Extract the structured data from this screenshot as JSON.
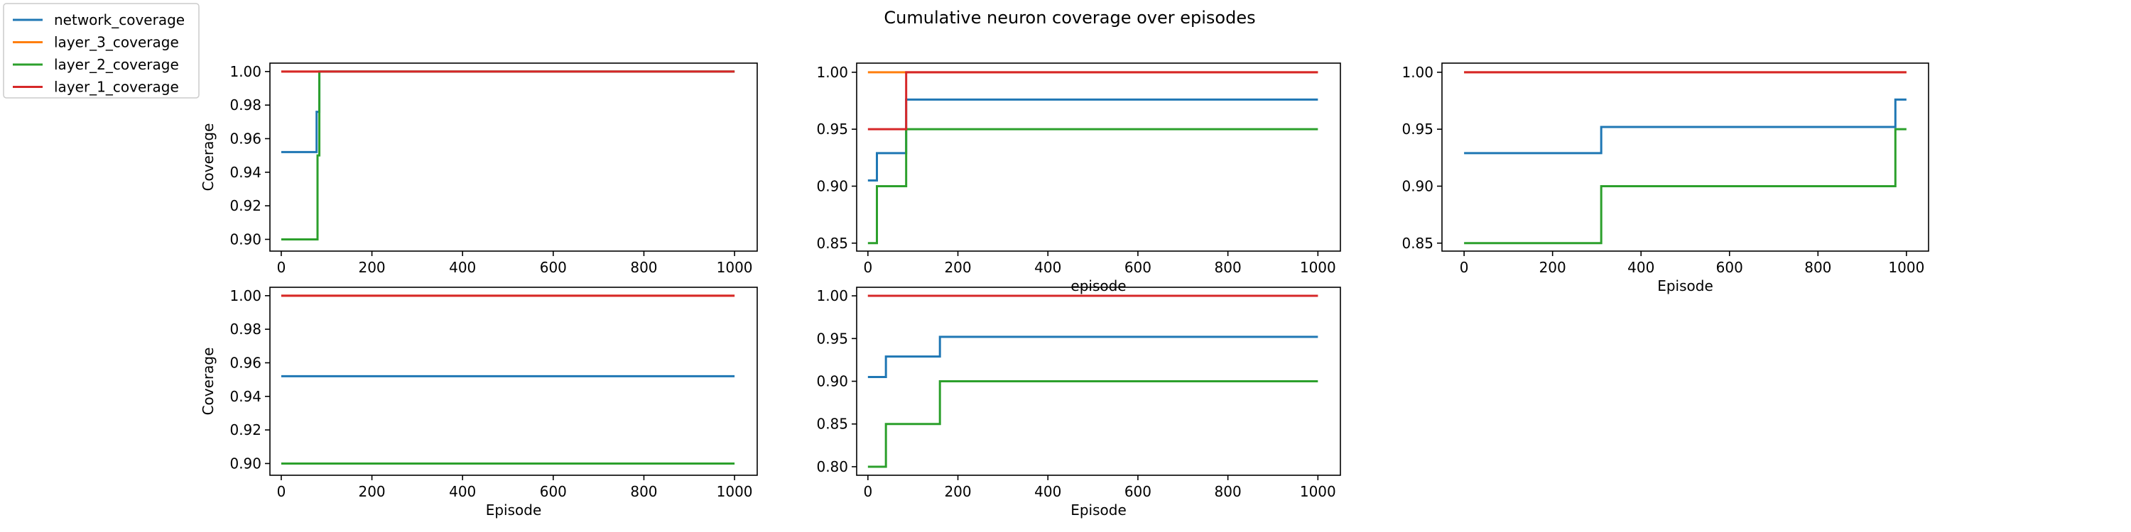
{
  "figure": {
    "title": "Cumulative neuron coverage over episodes"
  },
  "legend": {
    "position": "upper-left",
    "entries": [
      {
        "label": "network_coverage",
        "color": "#1f77b4"
      },
      {
        "label": "layer_3_coverage",
        "color": "#ff7f0e"
      },
      {
        "label": "layer_2_coverage",
        "color": "#2ca02c"
      },
      {
        "label": "layer_1_coverage",
        "color": "#d62728"
      }
    ]
  },
  "chart_data": [
    {
      "type": "line",
      "xlabel": "",
      "ylabel": "Coverage",
      "xlim": [
        -25,
        1050
      ],
      "ylim": [
        0.893,
        1.005
      ],
      "xticks": [
        0,
        200,
        400,
        600,
        800,
        1000
      ],
      "xtick_labels": [
        "0",
        "200",
        "400",
        "600",
        "800",
        "1000"
      ],
      "yticks": [
        0.9,
        0.92,
        0.94,
        0.96,
        0.98,
        1.0
      ],
      "ytick_labels": [
        "0.90",
        "0.92",
        "0.94",
        "0.96",
        "0.98",
        "1.00"
      ],
      "grid": false,
      "series": [
        {
          "name": "layer_3_coverage",
          "color": "#ff7f0e",
          "step": true,
          "x": [
            0,
            1000
          ],
          "y": [
            1.0,
            1.0
          ]
        },
        {
          "name": "network_coverage",
          "color": "#1f77b4",
          "step": true,
          "x": [
            0,
            78,
            84,
            1000
          ],
          "y": [
            0.952,
            0.976,
            1.0,
            1.0
          ]
        },
        {
          "name": "layer_2_coverage",
          "color": "#2ca02c",
          "step": true,
          "x": [
            0,
            80,
            84,
            1000
          ],
          "y": [
            0.9,
            0.95,
            1.0,
            1.0
          ]
        },
        {
          "name": "layer_1_coverage",
          "color": "#d62728",
          "step": true,
          "x": [
            0,
            1000
          ],
          "y": [
            1.0,
            1.0
          ]
        }
      ]
    },
    {
      "type": "line",
      "xlabel": "episode",
      "ylabel": "",
      "xlim": [
        -25,
        1050
      ],
      "ylim": [
        0.843,
        1.008
      ],
      "xticks": [
        0,
        200,
        400,
        600,
        800,
        1000
      ],
      "xtick_labels": [
        "0",
        "200",
        "400",
        "600",
        "800",
        "1000"
      ],
      "yticks": [
        0.85,
        0.9,
        0.95,
        1.0
      ],
      "ytick_labels": [
        "0.85",
        "0.90",
        "0.95",
        "1.00"
      ],
      "grid": false,
      "series": [
        {
          "name": "layer_3_coverage",
          "color": "#ff7f0e",
          "step": true,
          "x": [
            0,
            1000
          ],
          "y": [
            1.0,
            1.0
          ]
        },
        {
          "name": "network_coverage",
          "color": "#1f77b4",
          "step": true,
          "x": [
            0,
            20,
            85,
            1000
          ],
          "y": [
            0.905,
            0.929,
            0.976,
            0.976
          ]
        },
        {
          "name": "layer_2_coverage",
          "color": "#2ca02c",
          "step": true,
          "x": [
            0,
            20,
            85,
            1000
          ],
          "y": [
            0.85,
            0.9,
            0.95,
            0.95
          ]
        },
        {
          "name": "layer_1_coverage",
          "color": "#d62728",
          "step": true,
          "x": [
            0,
            85,
            1000
          ],
          "y": [
            0.95,
            1.0,
            1.0
          ]
        }
      ]
    },
    {
      "type": "line",
      "xlabel": "Episode",
      "ylabel": "",
      "xlim": [
        -50,
        1050
      ],
      "ylim": [
        0.843,
        1.008
      ],
      "xticks": [
        0,
        200,
        400,
        600,
        800,
        1000
      ],
      "xtick_labels": [
        "0",
        "200",
        "400",
        "600",
        "800",
        "1000"
      ],
      "yticks": [
        0.85,
        0.9,
        0.95,
        1.0
      ],
      "ytick_labels": [
        "0.85",
        "0.90",
        "0.95",
        "1.00"
      ],
      "grid": false,
      "series": [
        {
          "name": "layer_3_coverage",
          "color": "#ff7f0e",
          "step": true,
          "x": [
            0,
            1000
          ],
          "y": [
            1.0,
            1.0
          ]
        },
        {
          "name": "network_coverage",
          "color": "#1f77b4",
          "step": true,
          "x": [
            0,
            310,
            975,
            1000
          ],
          "y": [
            0.929,
            0.952,
            0.976,
            0.976
          ]
        },
        {
          "name": "layer_2_coverage",
          "color": "#2ca02c",
          "step": true,
          "x": [
            0,
            310,
            975,
            1000
          ],
          "y": [
            0.85,
            0.9,
            0.95,
            0.95
          ]
        },
        {
          "name": "layer_1_coverage",
          "color": "#d62728",
          "step": true,
          "x": [
            0,
            1000
          ],
          "y": [
            1.0,
            1.0
          ]
        }
      ]
    },
    {
      "type": "line",
      "xlabel": "Episode",
      "ylabel": "Coverage",
      "xlim": [
        -25,
        1050
      ],
      "ylim": [
        0.893,
        1.005
      ],
      "xticks": [
        0,
        200,
        400,
        600,
        800,
        1000
      ],
      "xtick_labels": [
        "0",
        "200",
        "400",
        "600",
        "800",
        "1000"
      ],
      "yticks": [
        0.9,
        0.92,
        0.94,
        0.96,
        0.98,
        1.0
      ],
      "ytick_labels": [
        "0.90",
        "0.92",
        "0.94",
        "0.96",
        "0.98",
        "1.00"
      ],
      "grid": false,
      "series": [
        {
          "name": "layer_3_coverage",
          "color": "#ff7f0e",
          "step": true,
          "x": [
            0,
            1000
          ],
          "y": [
            1.0,
            1.0
          ]
        },
        {
          "name": "network_coverage",
          "color": "#1f77b4",
          "step": true,
          "x": [
            0,
            1000
          ],
          "y": [
            0.952,
            0.952
          ]
        },
        {
          "name": "layer_2_coverage",
          "color": "#2ca02c",
          "step": true,
          "x": [
            0,
            1000
          ],
          "y": [
            0.9,
            0.9
          ]
        },
        {
          "name": "layer_1_coverage",
          "color": "#d62728",
          "step": true,
          "x": [
            0,
            1000
          ],
          "y": [
            1.0,
            1.0
          ]
        }
      ]
    },
    {
      "type": "line",
      "xlabel": "Episode",
      "ylabel": "",
      "xlim": [
        -25,
        1050
      ],
      "ylim": [
        0.79,
        1.01
      ],
      "xticks": [
        0,
        200,
        400,
        600,
        800,
        1000
      ],
      "xtick_labels": [
        "0",
        "200",
        "400",
        "600",
        "800",
        "1000"
      ],
      "yticks": [
        0.8,
        0.85,
        0.9,
        0.95,
        1.0
      ],
      "ytick_labels": [
        "0.80",
        "0.85",
        "0.90",
        "0.95",
        "1.00"
      ],
      "grid": false,
      "series": [
        {
          "name": "layer_3_coverage",
          "color": "#ff7f0e",
          "step": true,
          "x": [
            0,
            1000
          ],
          "y": [
            1.0,
            1.0
          ]
        },
        {
          "name": "network_coverage",
          "color": "#1f77b4",
          "step": true,
          "x": [
            0,
            40,
            160,
            1000
          ],
          "y": [
            0.905,
            0.929,
            0.952,
            0.952
          ]
        },
        {
          "name": "layer_2_coverage",
          "color": "#2ca02c",
          "step": true,
          "x": [
            0,
            40,
            160,
            1000
          ],
          "y": [
            0.8,
            0.85,
            0.9,
            0.9
          ]
        },
        {
          "name": "layer_1_coverage",
          "color": "#d62728",
          "step": true,
          "x": [
            0,
            1000
          ],
          "y": [
            1.0,
            1.0
          ]
        }
      ]
    }
  ]
}
